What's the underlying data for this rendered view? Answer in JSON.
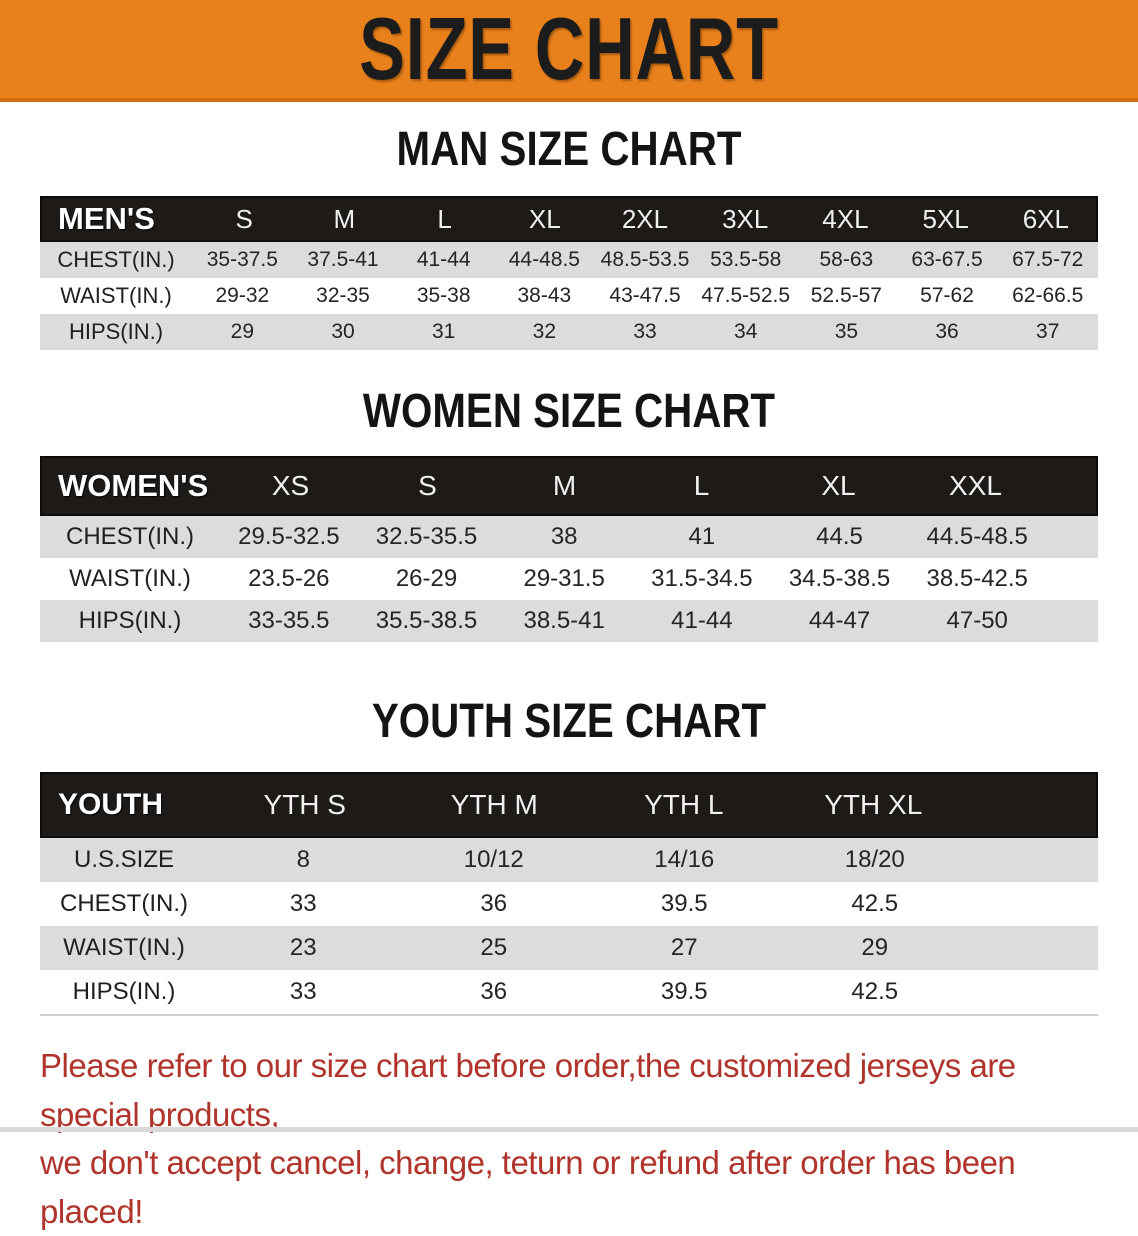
{
  "banner": {
    "title": "SIZE CHART",
    "bg_color": "#E8801B",
    "text_color": "#1c1c1c"
  },
  "sections": [
    {
      "heading": "MAN SIZE CHART",
      "table": {
        "corner_label": "MEN'S",
        "columns": [
          "S",
          "M",
          "L",
          "XL",
          "2XL",
          "3XL",
          "4XL",
          "5XL",
          "6XL"
        ],
        "rows": [
          {
            "label": "CHEST(IN.)",
            "values": [
              "35-37.5",
              "37.5-41",
              "41-44",
              "44-48.5",
              "48.5-53.5",
              "53.5-58",
              "58-63",
              "63-67.5",
              "67.5-72"
            ]
          },
          {
            "label": "WAIST(IN.)",
            "values": [
              "29-32",
              "32-35",
              "35-38",
              "38-43",
              "43-47.5",
              "47.5-52.5",
              "52.5-57",
              "57-62",
              "62-66.5"
            ]
          },
          {
            "label": "HIPS(IN.)",
            "values": [
              "29",
              "30",
              "31",
              "32",
              "33",
              "34",
              "35",
              "36",
              "37"
            ]
          }
        ]
      }
    },
    {
      "heading": "WOMEN SIZE CHART",
      "table": {
        "corner_label": "WOMEN'S",
        "columns": [
          "XS",
          "S",
          "M",
          "L",
          "XL",
          "XXL"
        ],
        "rows": [
          {
            "label": "CHEST(IN.)",
            "values": [
              "29.5-32.5",
              "32.5-35.5",
              "38",
              "41",
              "44.5",
              "44.5-48.5"
            ]
          },
          {
            "label": "WAIST(IN.)",
            "values": [
              "23.5-26",
              "26-29",
              "29-31.5",
              "31.5-34.5",
              "34.5-38.5",
              "38.5-42.5"
            ]
          },
          {
            "label": "HIPS(IN.)",
            "values": [
              "33-35.5",
              "35.5-38.5",
              "38.5-41",
              "41-44",
              "44-47",
              "47-50"
            ]
          }
        ]
      }
    },
    {
      "heading": "YOUTH SIZE CHART",
      "table": {
        "corner_label": "YOUTH",
        "columns": [
          "YTH S",
          "YTH M",
          "YTH L",
          "YTH XL"
        ],
        "rows": [
          {
            "label": "U.S.SIZE",
            "values": [
              "8",
              "10/12",
              "14/16",
              "18/20"
            ]
          },
          {
            "label": "CHEST(IN.)",
            "values": [
              "33",
              "36",
              "39.5",
              "42.5"
            ]
          },
          {
            "label": "WAIST(IN.)",
            "values": [
              "23",
              "25",
              "27",
              "29"
            ]
          },
          {
            "label": "HIPS(IN.)",
            "values": [
              "33",
              "36",
              "39.5",
              "42.5"
            ]
          }
        ]
      }
    }
  ],
  "disclaimer": {
    "line1": "Please refer to our size chart before order,the customized jerseys are special products,",
    "line2": "we don't accept cancel, change, teturn or refund after order has been placed!",
    "color": "#B0342B"
  },
  "colors": {
    "banner_orange": "#E8801B",
    "header_bar_black": "#1D1A18",
    "stripe_gray": "#DCDCDC",
    "stripe_white": "#FFFFFF",
    "disclaimer_red": "#B0342B"
  }
}
